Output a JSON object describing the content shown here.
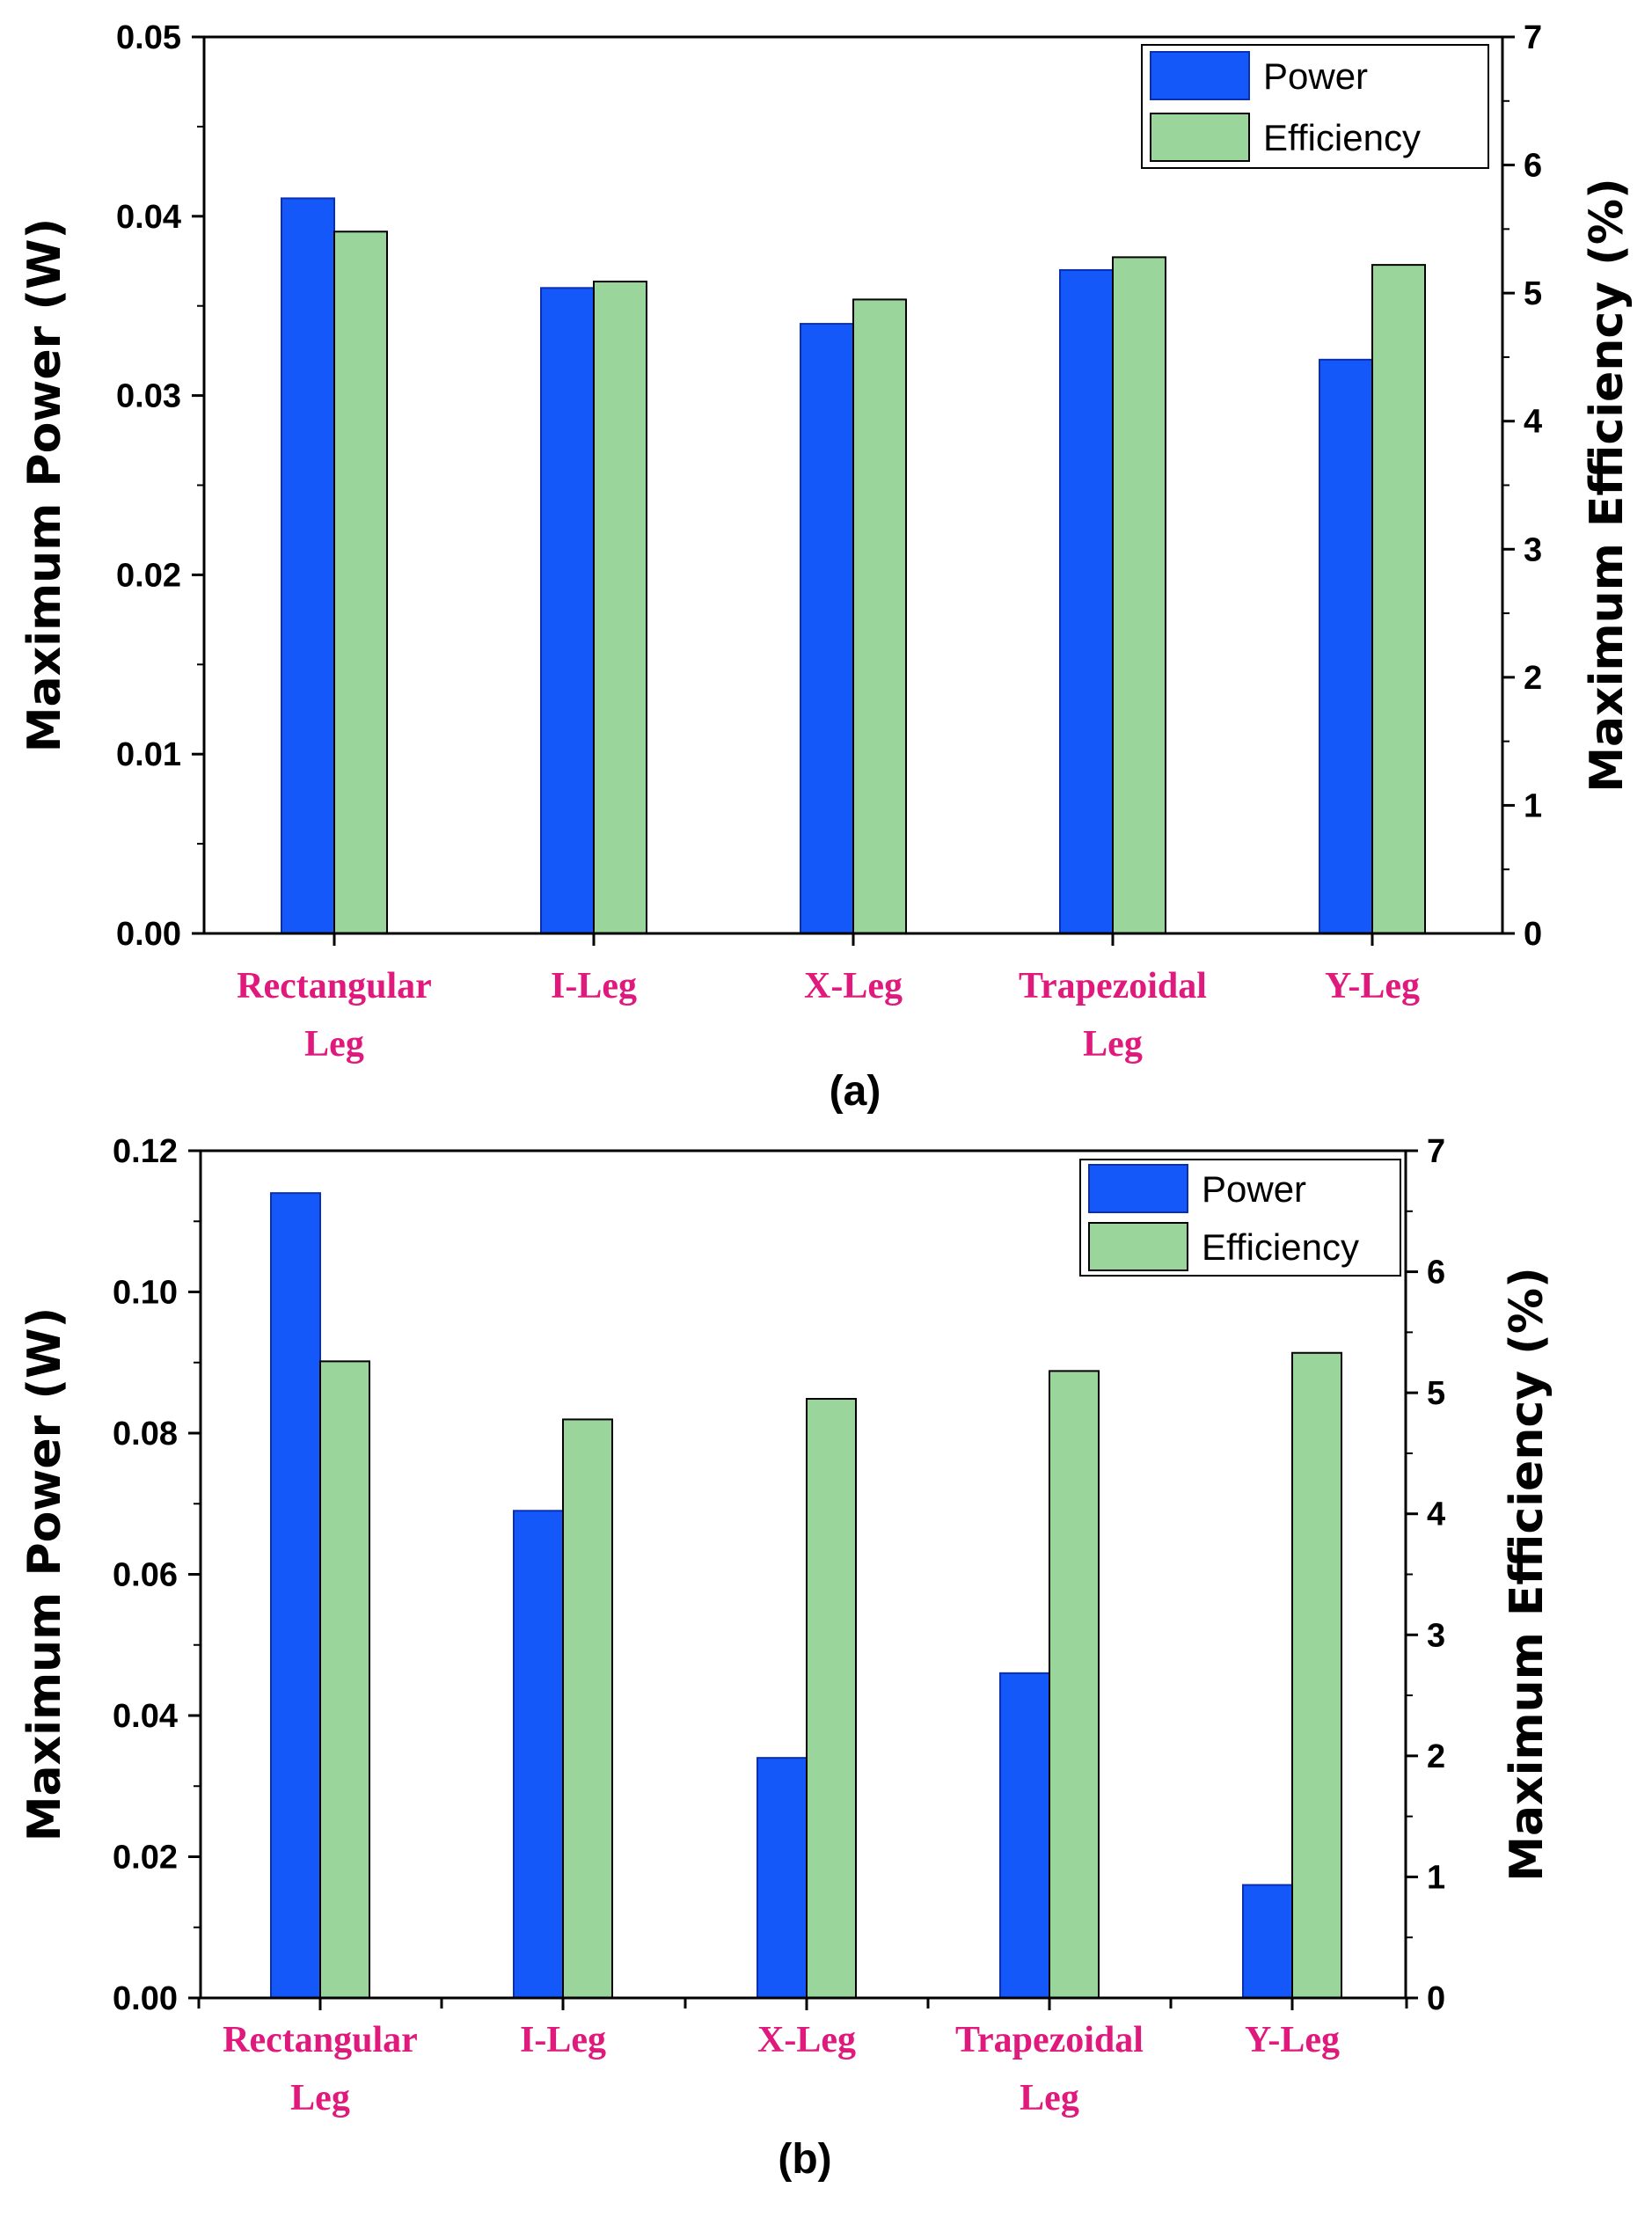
{
  "colors": {
    "power": "#1558fa",
    "efficiency": "#9ad69b",
    "category_label": "#e0197d",
    "axis": "#000000"
  },
  "chart_data": [
    {
      "type": "bar",
      "panel_label": "(a)",
      "categories": [
        [
          "Rectangular",
          "Leg"
        ],
        [
          "I-Leg"
        ],
        [
          "X-Leg"
        ],
        [
          "Trapezoidal",
          "Leg"
        ],
        [
          "Y-Leg"
        ]
      ],
      "series": [
        {
          "name": "Power",
          "axis": "left",
          "values": [
            0.041,
            0.036,
            0.034,
            0.037,
            0.032
          ]
        },
        {
          "name": "Efficiency",
          "axis": "right",
          "values": [
            5.48,
            5.09,
            4.95,
            5.28,
            5.22
          ]
        }
      ],
      "ylabel_left": "Maximum Power (W)",
      "ylabel_right": "Maximum Efficiency (%)",
      "ylim_left": [
        0,
        0.05
      ],
      "ylim_right": [
        0,
        7
      ],
      "yticks_left": [
        "0.00",
        "0.01",
        "0.02",
        "0.03",
        "0.04",
        "0.05"
      ],
      "yticks_right": [
        "0",
        "1",
        "2",
        "3",
        "4",
        "5",
        "6",
        "7"
      ],
      "legend": [
        "Power",
        "Efficiency"
      ],
      "legend_position": "top-right",
      "grid": false
    },
    {
      "type": "bar",
      "panel_label": "(b)",
      "categories": [
        [
          "Rectangular",
          "Leg"
        ],
        [
          "I-Leg"
        ],
        [
          "X-Leg"
        ],
        [
          "Trapezoidal",
          "Leg"
        ],
        [
          "Y-Leg"
        ]
      ],
      "series": [
        {
          "name": "Power",
          "axis": "left",
          "values": [
            0.114,
            0.069,
            0.034,
            0.046,
            0.016
          ]
        },
        {
          "name": "Efficiency",
          "axis": "right",
          "values": [
            5.26,
            4.78,
            4.95,
            5.18,
            5.33
          ]
        }
      ],
      "ylabel_left": "Maximum Power (W)",
      "ylabel_right": "Maximum Efficiency (%)",
      "ylim_left": [
        0,
        0.12
      ],
      "ylim_right": [
        0,
        7
      ],
      "yticks_left": [
        "0.00",
        "0.02",
        "0.04",
        "0.06",
        "0.08",
        "0.10",
        "0.12"
      ],
      "yticks_right": [
        "0",
        "1",
        "2",
        "3",
        "4",
        "5",
        "6",
        "7"
      ],
      "legend": [
        "Power",
        "Efficiency"
      ],
      "legend_position": "top-right",
      "grid": false
    }
  ]
}
